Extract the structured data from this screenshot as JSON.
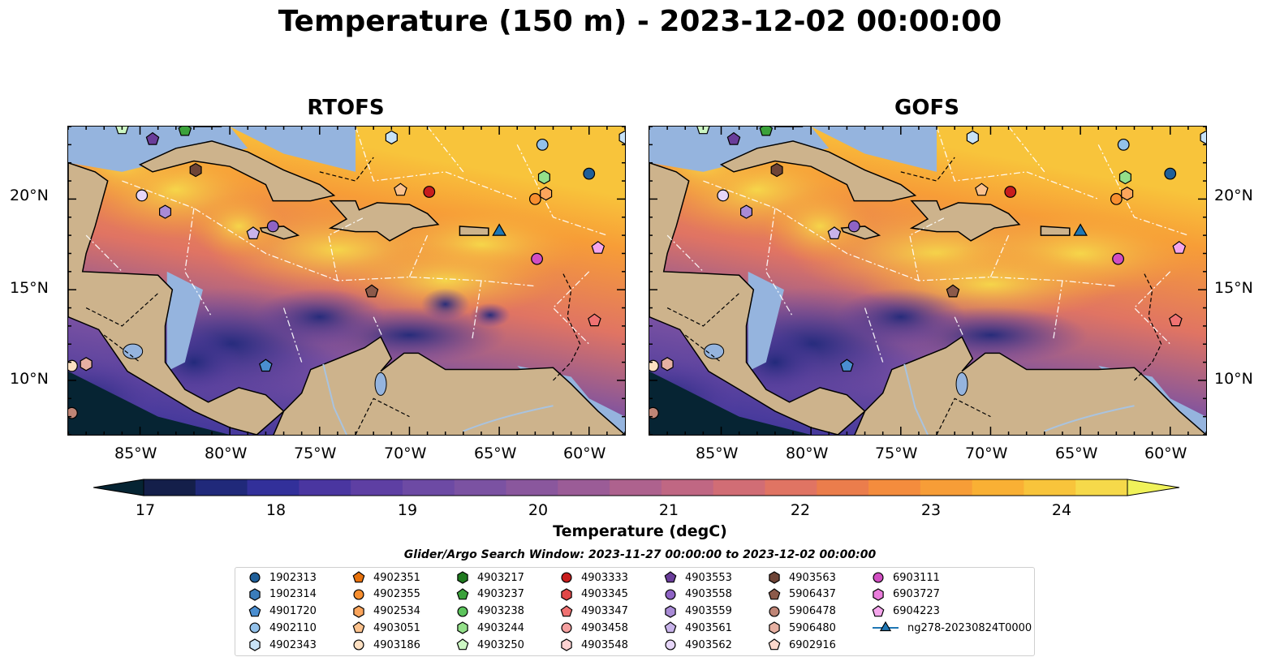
{
  "title": "Temperature (150 m) - 2023-12-02 00:00:00",
  "panels": [
    {
      "title": "RTOFS"
    },
    {
      "title": "GOFS"
    }
  ],
  "axes": {
    "x_ticks": [
      "85°W",
      "80°W",
      "75°W",
      "70°W",
      "65°W",
      "60°W"
    ],
    "y_ticks": [
      "20°N",
      "15°N",
      "10°N"
    ],
    "extent": {
      "lon": [
        -89,
        -58
      ],
      "lat": [
        7,
        24
      ]
    }
  },
  "colorbar": {
    "label": "Temperature (degC)",
    "ticks": [
      "17",
      "18",
      "19",
      "20",
      "21",
      "22",
      "23",
      "24"
    ],
    "range": [
      17,
      24.5
    ],
    "colors": [
      "#062433",
      "#141f4a",
      "#20297a",
      "#32309a",
      "#4a36a0",
      "#5e3fa3",
      "#6d4aa4",
      "#7b52a2",
      "#8a579d",
      "#9b5c97",
      "#ae628e",
      "#c06783",
      "#d16d75",
      "#e07463",
      "#eb7d4c",
      "#f48c3d",
      "#f79d37",
      "#f9b034",
      "#f8c43b",
      "#f6d94a",
      "#f0f25a"
    ]
  },
  "search_window": "Glider/Argo Search Window: 2023-11-27 00:00:00 to 2023-12-02 00:00:00",
  "legend": [
    {
      "label": "1902313",
      "shape": "circle",
      "color": "#1f5f99"
    },
    {
      "label": "1902314",
      "shape": "hexagon",
      "color": "#3b7dbb"
    },
    {
      "label": "4901720",
      "shape": "pentagon",
      "color": "#4a8ed0"
    },
    {
      "label": "4902110",
      "shape": "circle",
      "color": "#93c1ea"
    },
    {
      "label": "4902343",
      "shape": "hexagon",
      "color": "#c8e3f7"
    },
    {
      "label": "4902351",
      "shape": "pentagon",
      "color": "#e8720c"
    },
    {
      "label": "4902355",
      "shape": "circle",
      "color": "#f88f2f"
    },
    {
      "label": "4902534",
      "shape": "hexagon",
      "color": "#fba55c"
    },
    {
      "label": "4903051",
      "shape": "pentagon",
      "color": "#fcc28d"
    },
    {
      "label": "4903186",
      "shape": "circle",
      "color": "#fde0c2"
    },
    {
      "label": "4903217",
      "shape": "hexagon",
      "color": "#1f7a1f"
    },
    {
      "label": "4903237",
      "shape": "pentagon",
      "color": "#3ba13b"
    },
    {
      "label": "4903238",
      "shape": "circle",
      "color": "#5cc45c"
    },
    {
      "label": "4903244",
      "shape": "hexagon",
      "color": "#94e08a"
    },
    {
      "label": "4903250",
      "shape": "pentagon",
      "color": "#cdf7c4"
    },
    {
      "label": "4903333",
      "shape": "circle",
      "color": "#c81d1d"
    },
    {
      "label": "4903345",
      "shape": "hexagon",
      "color": "#e04848"
    },
    {
      "label": "4903347",
      "shape": "pentagon",
      "color": "#f07272"
    },
    {
      "label": "4903458",
      "shape": "circle",
      "color": "#f5a0a0"
    },
    {
      "label": "4903548",
      "shape": "hexagon",
      "color": "#fcd2d2"
    },
    {
      "label": "4903553",
      "shape": "pentagon",
      "color": "#6a3d9a"
    },
    {
      "label": "4903558",
      "shape": "circle",
      "color": "#8e63c4"
    },
    {
      "label": "4903559",
      "shape": "hexagon",
      "color": "#a98bd6"
    },
    {
      "label": "4903561",
      "shape": "pentagon",
      "color": "#c8b3ea"
    },
    {
      "label": "4903562",
      "shape": "circle",
      "color": "#e6d6f8"
    },
    {
      "label": "4903563",
      "shape": "hexagon",
      "color": "#6e4437"
    },
    {
      "label": "5906437",
      "shape": "pentagon",
      "color": "#8c5a4a"
    },
    {
      "label": "5906478",
      "shape": "circle",
      "color": "#bf8576"
    },
    {
      "label": "5906480",
      "shape": "hexagon",
      "color": "#e6b0a2"
    },
    {
      "label": "6902916",
      "shape": "pentagon",
      "color": "#fbd8cc"
    },
    {
      "label": "6903111",
      "shape": "circle",
      "color": "#d14ec2"
    },
    {
      "label": "6903727",
      "shape": "hexagon",
      "color": "#ea7ddc"
    },
    {
      "label": "6904223",
      "shape": "pentagon",
      "color": "#f5a6ec"
    },
    {
      "label": "ng278-20230824T0000",
      "shape": "triangle",
      "color": "#1f77b4"
    }
  ],
  "floats": [
    {
      "id": "1902313",
      "shape": "circle",
      "color": "#1f5f99",
      "lon": -60.0,
      "lat": 21.4
    },
    {
      "id": "4902110",
      "shape": "circle",
      "color": "#93c1ea",
      "lon": -62.6,
      "lat": 23.0
    },
    {
      "id": "4902343",
      "shape": "hexagon",
      "color": "#c8e3f7",
      "lon": -71.0,
      "lat": 23.4
    },
    {
      "id": "4902343b",
      "shape": "hexagon",
      "color": "#c8e3f7",
      "lon": -58.0,
      "lat": 23.4
    },
    {
      "id": "4903237",
      "shape": "pentagon",
      "color": "#3ba13b",
      "lon": -82.5,
      "lat": 23.8
    },
    {
      "id": "4903244",
      "shape": "hexagon",
      "color": "#94e08a",
      "lon": -62.5,
      "lat": 21.2
    },
    {
      "id": "4903553",
      "shape": "pentagon",
      "color": "#6a3d9a",
      "lon": -84.3,
      "lat": 23.3
    },
    {
      "id": "4903563",
      "shape": "hexagon",
      "color": "#6e4437",
      "lon": -81.9,
      "lat": 21.6
    },
    {
      "id": "4903562",
      "shape": "circle",
      "color": "#e6d6f8",
      "lon": -84.9,
      "lat": 20.2
    },
    {
      "id": "4903559",
      "shape": "hexagon",
      "color": "#a98bd6",
      "lon": -83.6,
      "lat": 19.3
    },
    {
      "id": "4903558",
      "shape": "circle",
      "color": "#8e63c4",
      "lon": -77.6,
      "lat": 18.5
    },
    {
      "id": "4903561",
      "shape": "pentagon",
      "color": "#c8b3ea",
      "lon": -78.7,
      "lat": 18.1
    },
    {
      "id": "4903051",
      "shape": "pentagon",
      "color": "#fcc28d",
      "lon": -70.5,
      "lat": 20.5
    },
    {
      "id": "4903333",
      "shape": "circle",
      "color": "#c81d1d",
      "lon": -68.9,
      "lat": 20.4
    },
    {
      "id": "4902355",
      "shape": "circle",
      "color": "#f88f2f",
      "lon": -63.0,
      "lat": 20.0
    },
    {
      "id": "4902534",
      "shape": "hexagon",
      "color": "#fba55c",
      "lon": -62.4,
      "lat": 20.3
    },
    {
      "id": "ng278",
      "shape": "triangle",
      "color": "#1f77b4",
      "lon": -65.0,
      "lat": 18.2
    },
    {
      "id": "6904223",
      "shape": "pentagon",
      "color": "#f5a6ec",
      "lon": -59.5,
      "lat": 17.3
    },
    {
      "id": "6903111",
      "shape": "circle",
      "color": "#d14ec2",
      "lon": -62.9,
      "lat": 16.7
    },
    {
      "id": "5906437",
      "shape": "pentagon",
      "color": "#8c5a4a",
      "lon": -72.1,
      "lat": 14.9
    },
    {
      "id": "4903347",
      "shape": "pentagon",
      "color": "#f07272",
      "lon": -59.7,
      "lat": 13.3
    },
    {
      "id": "4901720",
      "shape": "pentagon",
      "color": "#4a8ed0",
      "lon": -78.0,
      "lat": 10.8
    },
    {
      "id": "4903186",
      "shape": "circle",
      "color": "#fde0c2",
      "lon": -88.8,
      "lat": 10.8
    },
    {
      "id": "5906480",
      "shape": "hexagon",
      "color": "#e6b0a2",
      "lon": -88.0,
      "lat": 10.9
    },
    {
      "id": "5906478",
      "shape": "circle",
      "color": "#bf8576",
      "lon": -88.8,
      "lat": 8.2
    },
    {
      "id": "4903250",
      "shape": "pentagon",
      "color": "#cdf7c4",
      "lon": -86.0,
      "lat": 23.9
    }
  ]
}
